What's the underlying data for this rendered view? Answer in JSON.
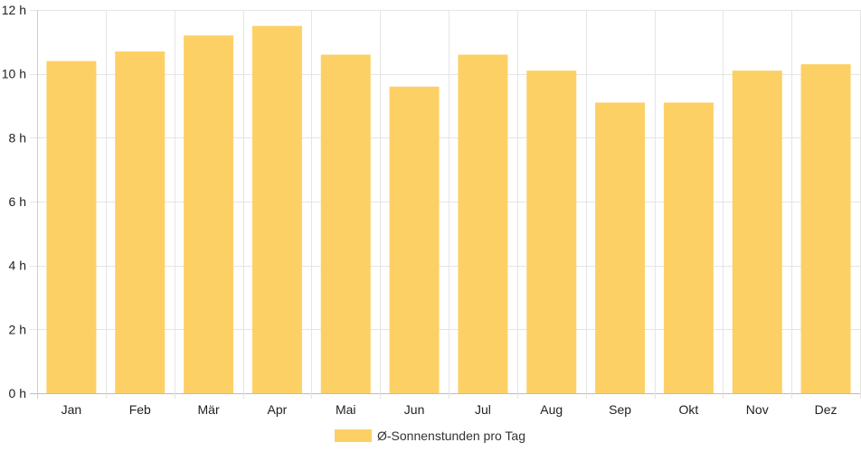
{
  "chart_data": {
    "type": "bar",
    "categories": [
      "Jan",
      "Feb",
      "Mär",
      "Apr",
      "Mai",
      "Jun",
      "Jul",
      "Aug",
      "Sep",
      "Okt",
      "Nov",
      "Dez"
    ],
    "series": [
      {
        "name": "Ø-Sonnenstunden pro Tag",
        "values": [
          10.4,
          10.7,
          11.2,
          11.5,
          10.6,
          9.6,
          10.6,
          10.1,
          9.1,
          9.1,
          10.1,
          10.3
        ]
      }
    ],
    "ylim": [
      0,
      12
    ],
    "yticks": [
      0,
      2,
      4,
      6,
      8,
      10,
      12
    ],
    "ytick_suffix": " h",
    "grid": true,
    "legend_position": "bottom",
    "bar_color": "#fdd066",
    "grid_color": "#e5e5e5",
    "text_color": "#222222"
  }
}
